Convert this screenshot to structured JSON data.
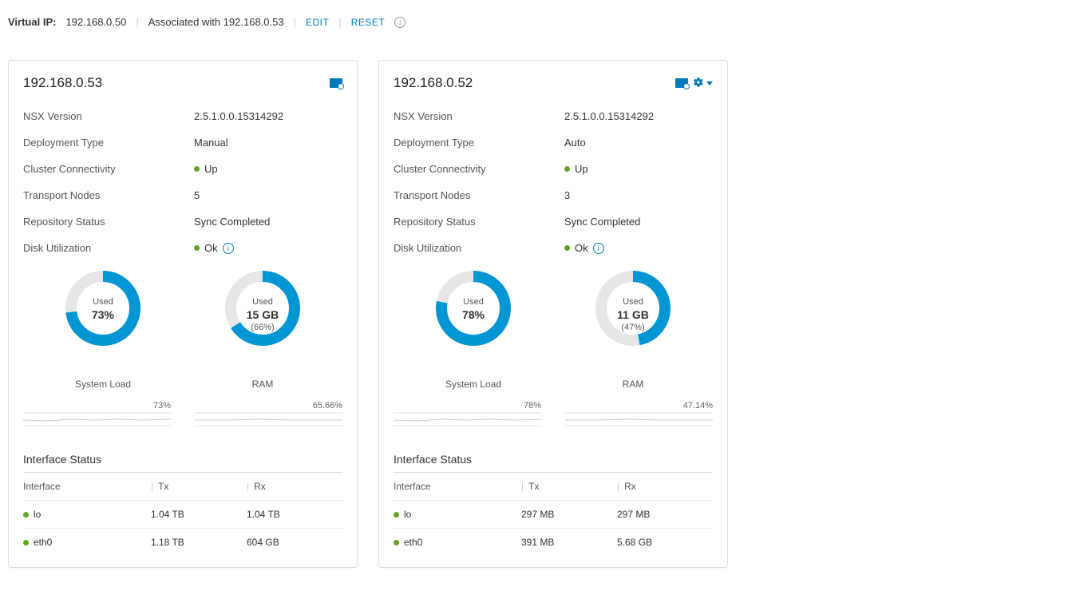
{
  "header": {
    "label": "Virtual IP:",
    "ip": "192.168.0.50",
    "assoc": "Associated with 192.168.0.53",
    "edit": "EDIT",
    "reset": "RESET"
  },
  "common": {
    "nsx_label": "NSX Version",
    "deploy_label": "Deployment Type",
    "cluster_label": "Cluster Connectivity",
    "transport_label": "Transport Nodes",
    "repo_label": "Repository Status",
    "disk_label": "Disk Utilization",
    "sysload_label": "System Load",
    "ram_label": "RAM",
    "used_label": "Used",
    "iface_title": "Interface Status",
    "col_if": "Interface",
    "col_tx": "Tx",
    "col_rx": "Rx"
  },
  "colors": {
    "donut_fg": "#0095d3",
    "donut_bg": "#e6e6e6",
    "status_green": "#62a420",
    "link": "#0079b8"
  },
  "cards": [
    {
      "ip": "192.168.0.53",
      "show_gear": false,
      "nsx": "2.5.1.0.0.15314292",
      "deploy": "Manual",
      "cluster": "Up",
      "transport": "5",
      "repo": "Sync Completed",
      "disk": "Ok",
      "sysload_pct": 73,
      "sysload_big": "73%",
      "sysload_spark": "73%",
      "ram_pct": 66,
      "ram_big": "15 GB",
      "ram_sub": "(66%)",
      "ram_spark": "65.66%",
      "iface": [
        {
          "name": "lo",
          "tx": "1.04 TB",
          "rx": "1.04 TB"
        },
        {
          "name": "eth0",
          "tx": "1.18 TB",
          "rx": "604 GB"
        }
      ]
    },
    {
      "ip": "192.168.0.52",
      "show_gear": true,
      "nsx": "2.5.1.0.0.15314292",
      "deploy": "Auto",
      "cluster": "Up",
      "transport": "3",
      "repo": "Sync Completed",
      "disk": "Ok",
      "sysload_pct": 78,
      "sysload_big": "78%",
      "sysload_spark": "78%",
      "ram_pct": 47,
      "ram_big": "11 GB",
      "ram_sub": "(47%)",
      "ram_spark": "47.14%",
      "iface": [
        {
          "name": "lo",
          "tx": "297 MB",
          "rx": "297 MB"
        },
        {
          "name": "eth0",
          "tx": "391 MB",
          "rx": "5.68 GB"
        }
      ]
    }
  ]
}
